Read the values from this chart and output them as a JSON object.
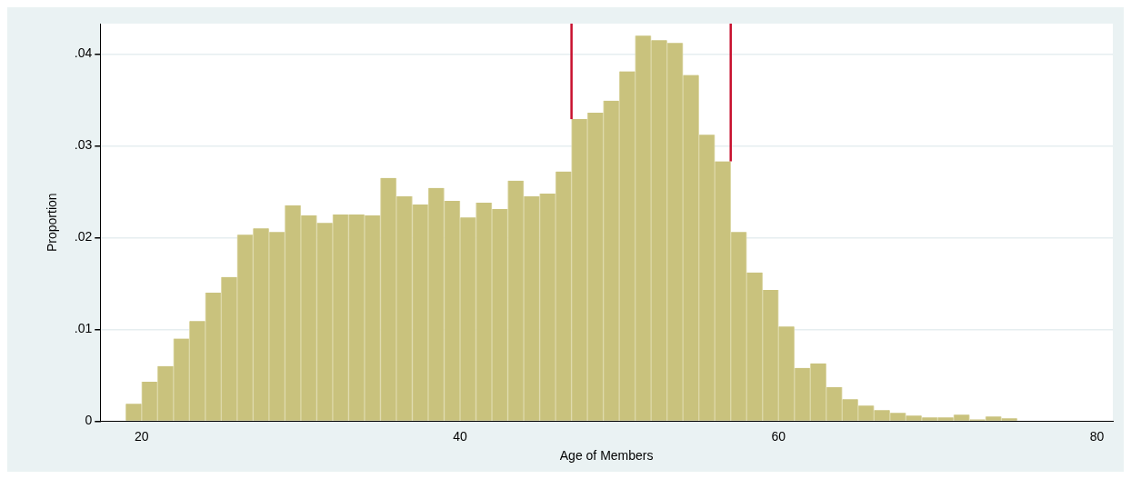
{
  "chart_data": {
    "type": "histogram",
    "xlabel": "Age of Members",
    "ylabel": "Proportion",
    "color": "#c9c27d",
    "bins": [
      19,
      20,
      21,
      22,
      23,
      24,
      25,
      26,
      27,
      28,
      29,
      30,
      31,
      32,
      33,
      34,
      35,
      36,
      37,
      38,
      39,
      40,
      41,
      42,
      43,
      44,
      45,
      46,
      47,
      48,
      49,
      50,
      51,
      52,
      53,
      54,
      55,
      56,
      57,
      58,
      59,
      60,
      61,
      62,
      63,
      64,
      65,
      66,
      67,
      68,
      69,
      70,
      71,
      72,
      73,
      74,
      75
    ],
    "values": [
      0.0019,
      0.0043,
      0.006,
      0.009,
      0.0109,
      0.014,
      0.0157,
      0.0203,
      0.021,
      0.0206,
      0.0235,
      0.0224,
      0.0216,
      0.0225,
      0.0225,
      0.0224,
      0.0265,
      0.0245,
      0.0236,
      0.0254,
      0.024,
      0.0222,
      0.0238,
      0.0231,
      0.0262,
      0.0245,
      0.0248,
      0.0272,
      0.0329,
      0.0336,
      0.0349,
      0.0381,
      0.042,
      0.0415,
      0.0412,
      0.0377,
      0.0312,
      0.0283,
      0.0206,
      0.0162,
      0.0143,
      0.0103,
      0.0058,
      0.0063,
      0.0037,
      0.0024,
      0.0017,
      0.0012,
      0.0009,
      0.0006,
      0.0004,
      0.0004,
      0.0007,
      0.0002,
      0.0005,
      0.0003
    ],
    "xlim": [
      17.4,
      81
    ],
    "xticks": [
      20,
      40,
      60,
      80
    ],
    "ylim": [
      0,
      0.0433
    ],
    "yticks": [
      {
        "value": 0,
        "label": "0"
      },
      {
        "value": 0.01,
        "label": ".01"
      },
      {
        "value": 0.02,
        "label": ".02"
      },
      {
        "value": 0.03,
        "label": ".03"
      },
      {
        "value": 0.04,
        "label": ".04"
      }
    ],
    "grid": "y",
    "ref_lines": [
      {
        "axis": "x",
        "value": 47,
        "color": "#c8102e"
      },
      {
        "axis": "x",
        "value": 57,
        "color": "#c8102e"
      }
    ]
  }
}
